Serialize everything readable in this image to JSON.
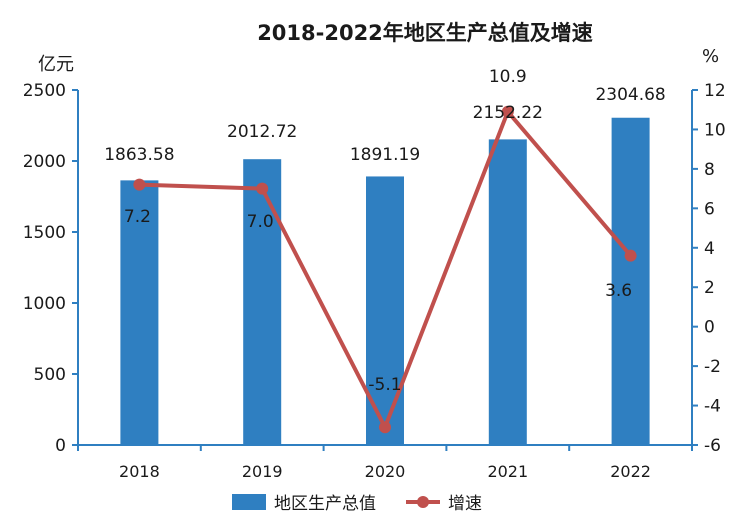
{
  "chart_data": {
    "type": "bar",
    "title": "2018-2022年地区生产总值及增速",
    "left_unit": "亿元",
    "right_unit": "%",
    "categories": [
      "2018",
      "2019",
      "2020",
      "2021",
      "2022"
    ],
    "series": [
      {
        "name": "地区生产总值",
        "type": "bar",
        "axis": "left",
        "values": [
          1863.58,
          2012.72,
          1891.19,
          2152.22,
          2304.68
        ],
        "labels": [
          "1863.58",
          "2012.72",
          "1891.19",
          "2152.22",
          "2304.68"
        ],
        "color": "#2f7fc1"
      },
      {
        "name": "增速",
        "type": "line",
        "axis": "right",
        "values": [
          7.2,
          7.0,
          -5.1,
          10.9,
          3.6
        ],
        "labels": [
          "7.2",
          "7.0",
          "-5.1",
          "10.9",
          "3.6"
        ],
        "color": "#c0504d"
      }
    ],
    "left_axis": {
      "min": 0,
      "max": 2500,
      "step": 500,
      "ticks": [
        "0",
        "500",
        "1000",
        "1500",
        "2000",
        "2500"
      ]
    },
    "right_axis": {
      "min": -6,
      "max": 12,
      "step": 2,
      "ticks": [
        "-6",
        "-4",
        "-2",
        "0",
        "2",
        "4",
        "6",
        "8",
        "10",
        "12"
      ]
    },
    "grid": false,
    "legend_position": "bottom"
  },
  "colors": {
    "axis": "#2f7fc1",
    "bar": "#2f7fc1",
    "line": "#c0504d",
    "text": "#1a1a1a"
  }
}
